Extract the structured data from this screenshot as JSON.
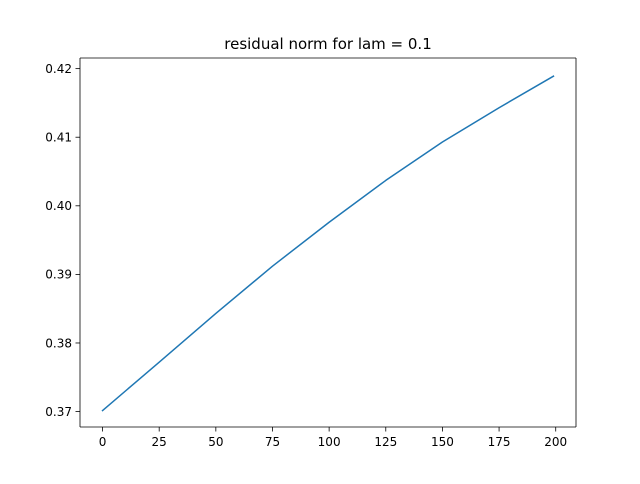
{
  "chart_data": {
    "type": "line",
    "title": "residual norm for lam = 0.1",
    "xlabel": "",
    "ylabel": "",
    "xlim": [
      -9.95,
      208.95
    ],
    "ylim": [
      0.36775,
      0.42155
    ],
    "xticks": [
      0,
      25,
      50,
      75,
      100,
      125,
      150,
      175,
      200
    ],
    "xtick_labels": [
      "0",
      "25",
      "50",
      "75",
      "100",
      "125",
      "150",
      "175",
      "200"
    ],
    "yticks": [
      0.37,
      0.38,
      0.39,
      0.4,
      0.41,
      0.42
    ],
    "ytick_labels": [
      "0.37",
      "0.38",
      "0.39",
      "0.40",
      "0.41",
      "0.42"
    ],
    "grid": false,
    "legend": "none",
    "series": [
      {
        "color": "#1f77b4",
        "x": [
          0,
          25,
          50,
          75,
          100,
          125,
          150,
          175,
          199
        ],
        "y": [
          0.37015,
          0.3772,
          0.3843,
          0.3912,
          0.3976,
          0.4037,
          0.4093,
          0.4143,
          0.4189
        ]
      }
    ]
  }
}
